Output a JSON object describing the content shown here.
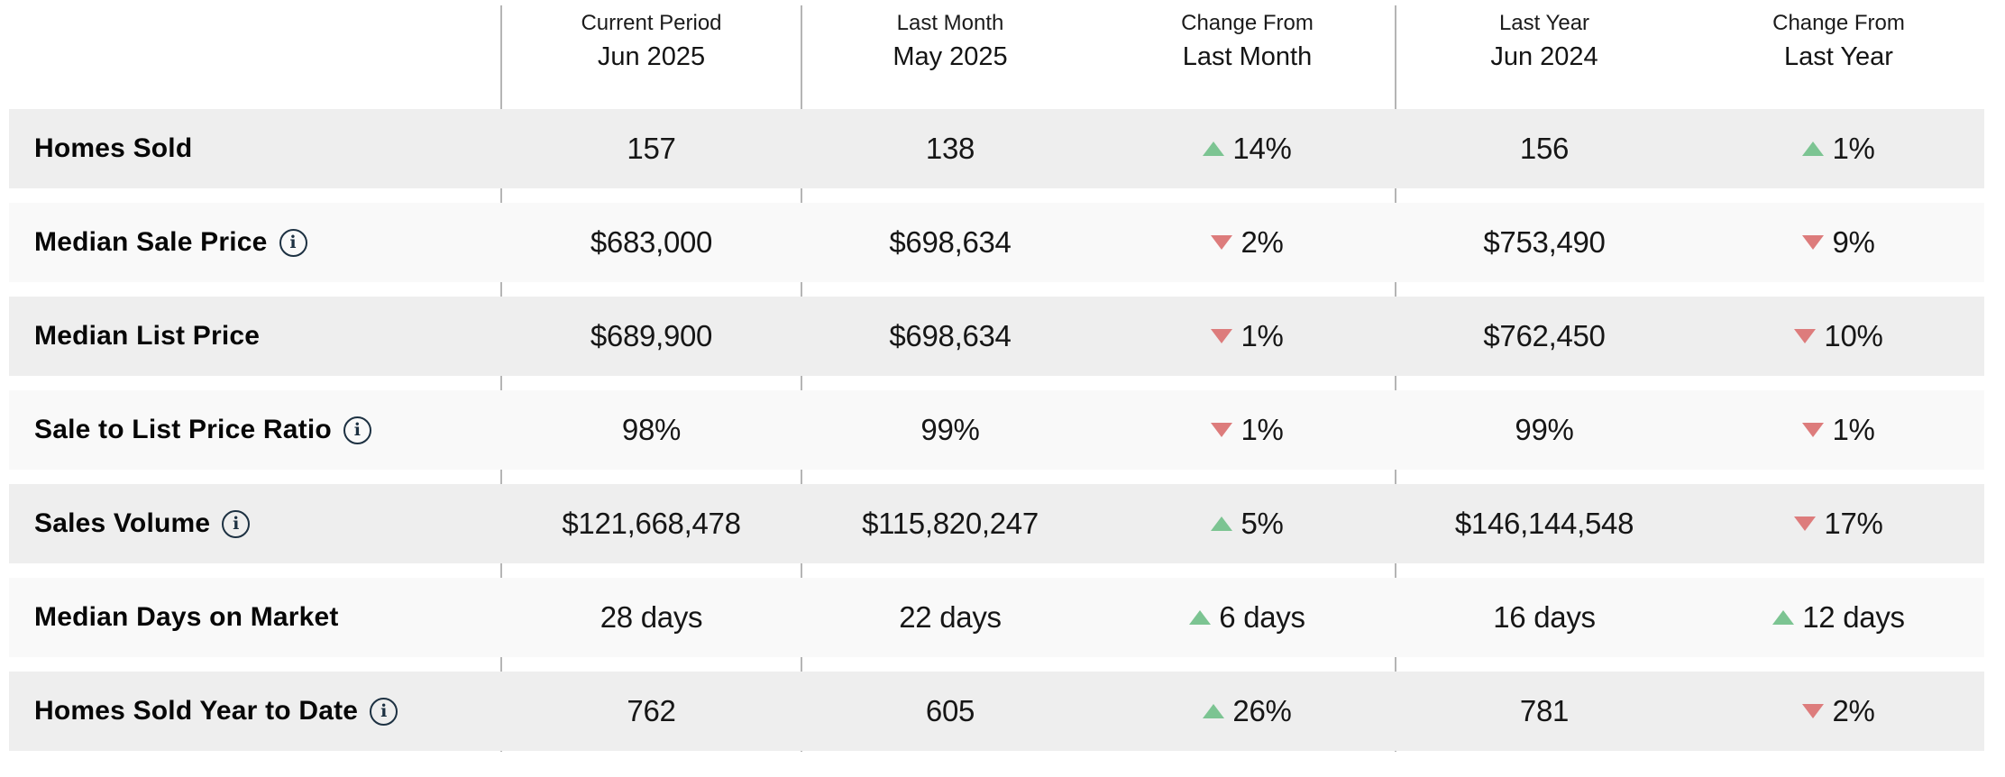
{
  "colors": {
    "row-dark": "#eeeeee",
    "row-light": "#f9f9f9",
    "green": "#7cc492",
    "red": "#dd7c7c",
    "ink": "#1d3142",
    "text": "#1a1a1a",
    "divider": "#b5b5b5"
  },
  "icons": {
    "info_glyph": "i",
    "info_name": "circled-i-info-icon",
    "up_name": "triangle-up-icon",
    "down_name": "triangle-down-icon"
  },
  "header": {
    "columns": [
      {
        "line1": "Current Period",
        "line2": "Jun 2025"
      },
      {
        "line1": "Last Month",
        "line2": "May 2025"
      },
      {
        "line1": "Change From",
        "line2": "Last Month"
      },
      {
        "line1": "Last Year",
        "line2": "Jun 2024"
      },
      {
        "line1": "Change From",
        "line2": "Last Year"
      }
    ]
  },
  "table": {
    "rows": [
      {
        "label": "Homes Sold",
        "has_info": false,
        "current": "157",
        "last_month": "138",
        "change_month": {
          "dir": "up",
          "text": "14%"
        },
        "last_year": "156",
        "change_year": {
          "dir": "up",
          "text": "1%"
        }
      },
      {
        "label": "Median Sale Price",
        "has_info": true,
        "current": "$683,000",
        "last_month": "$698,634",
        "change_month": {
          "dir": "down",
          "text": "2%"
        },
        "last_year": "$753,490",
        "change_year": {
          "dir": "down",
          "text": "9%"
        }
      },
      {
        "label": "Median List Price",
        "has_info": false,
        "current": "$689,900",
        "last_month": "$698,634",
        "change_month": {
          "dir": "down",
          "text": "1%"
        },
        "last_year": "$762,450",
        "change_year": {
          "dir": "down",
          "text": "10%"
        }
      },
      {
        "label": "Sale to List Price Ratio",
        "has_info": true,
        "current": "98%",
        "last_month": "99%",
        "change_month": {
          "dir": "down",
          "text": "1%"
        },
        "last_year": "99%",
        "change_year": {
          "dir": "down",
          "text": "1%"
        }
      },
      {
        "label": "Sales Volume",
        "has_info": true,
        "current": "$121,668,478",
        "last_month": "$115,820,247",
        "change_month": {
          "dir": "up",
          "text": "5%"
        },
        "last_year": "$146,144,548",
        "change_year": {
          "dir": "down",
          "text": "17%"
        }
      },
      {
        "label": "Median Days on Market",
        "has_info": false,
        "current": "28 days",
        "last_month": "22 days",
        "change_month": {
          "dir": "up",
          "text": "6 days"
        },
        "last_year": "16 days",
        "change_year": {
          "dir": "up",
          "text": "12 days"
        }
      },
      {
        "label": "Homes Sold Year to Date",
        "has_info": true,
        "current": "762",
        "last_month": "605",
        "change_month": {
          "dir": "up",
          "text": "26%"
        },
        "last_year": "781",
        "change_year": {
          "dir": "down",
          "text": "2%"
        }
      }
    ]
  }
}
